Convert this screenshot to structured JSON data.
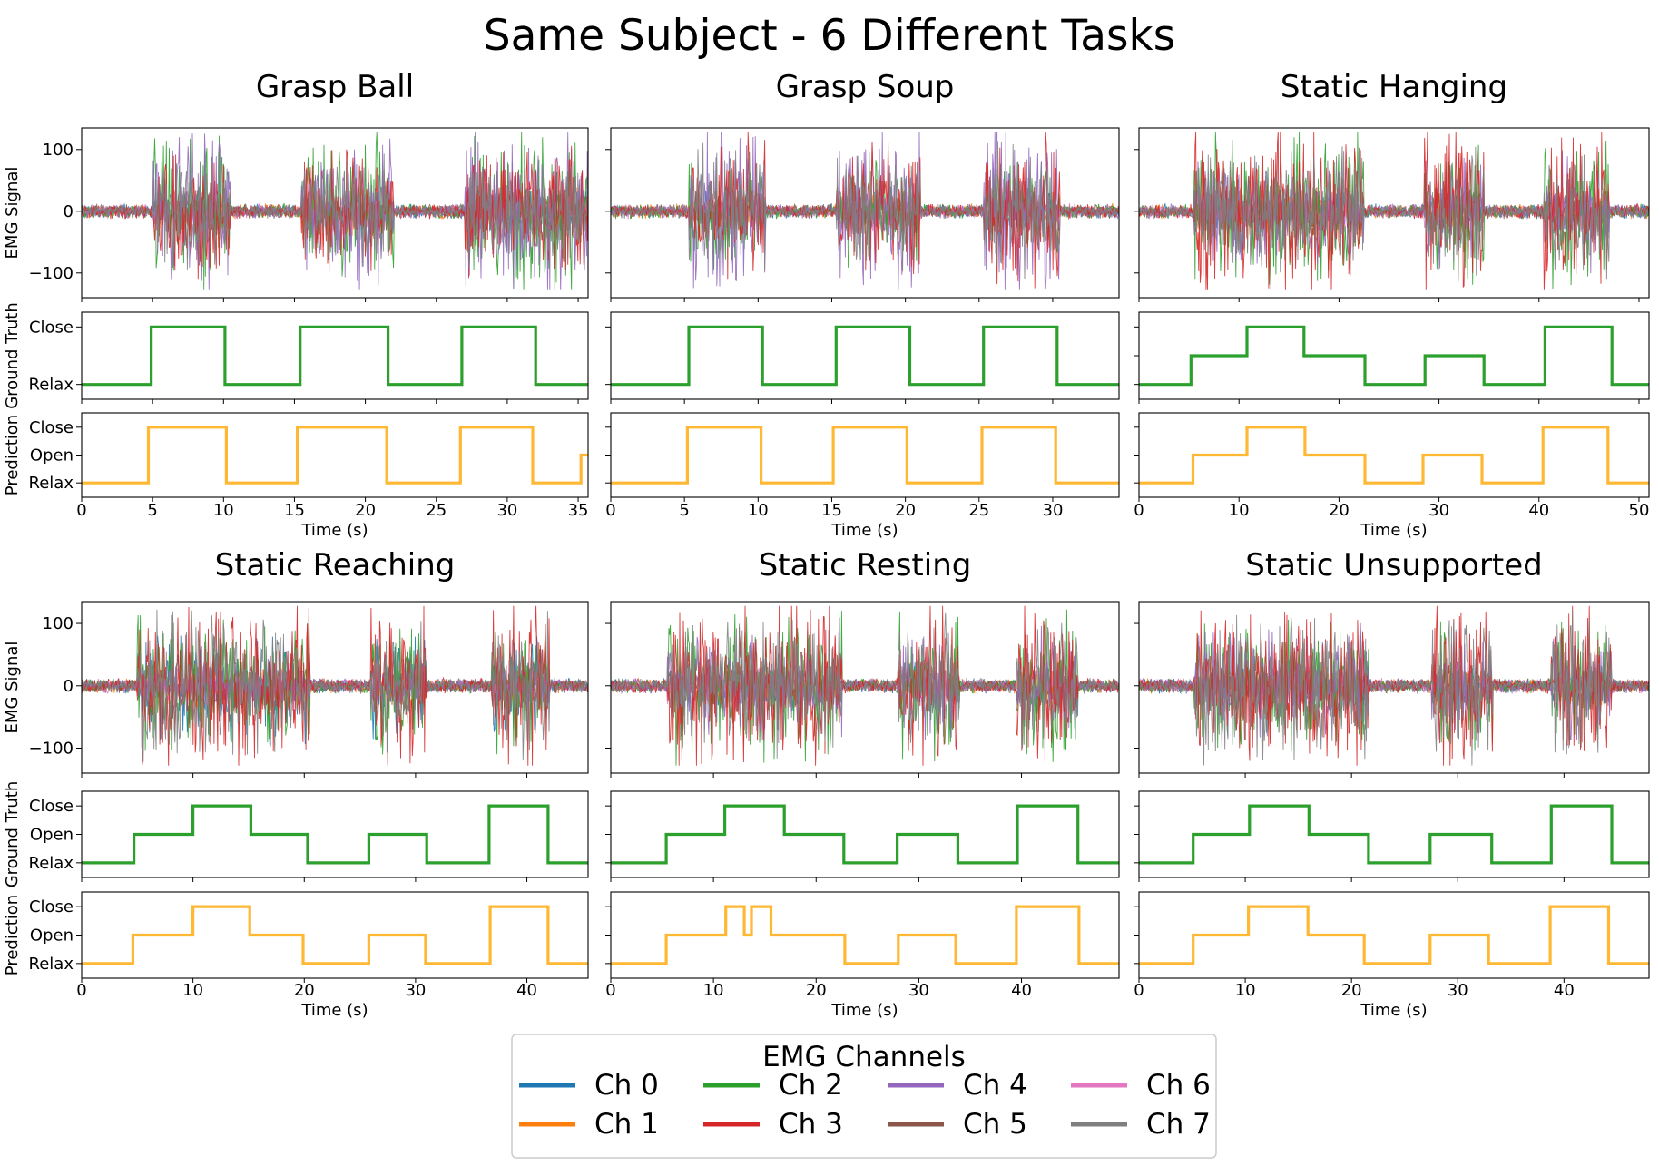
{
  "title": "Same Subject - 6 Different Tasks",
  "axis_labels": {
    "emg": "EMG Signal",
    "ground_truth": "Ground Truth",
    "prediction": "Prediction",
    "time": "Time (s)"
  },
  "legend": {
    "title": "EMG Channels",
    "items": [
      {
        "label": "Ch 0",
        "color": "#1f77b4"
      },
      {
        "label": "Ch 1",
        "color": "#ff7f0e"
      },
      {
        "label": "Ch 2",
        "color": "#2ca02c"
      },
      {
        "label": "Ch 3",
        "color": "#d62728"
      },
      {
        "label": "Ch 4",
        "color": "#9467bd"
      },
      {
        "label": "Ch 5",
        "color": "#8c564b"
      },
      {
        "label": "Ch 6",
        "color": "#e377c2"
      },
      {
        "label": "Ch 7",
        "color": "#7f7f7f"
      }
    ]
  },
  "colors": {
    "ground_truth": "#2ca02c",
    "prediction": "#ffb833"
  },
  "chart_data": [
    {
      "type": "line",
      "title": "Grasp Ball",
      "xlim": [
        0,
        35.7
      ],
      "xticks": [
        0,
        5,
        10,
        15,
        20,
        25,
        30,
        35
      ],
      "emg_ylim": [
        -140,
        135
      ],
      "emg_yticks": [
        -100,
        0,
        100
      ],
      "active_windows": [
        [
          5,
          10.5
        ],
        [
          15.5,
          22
        ],
        [
          27,
          35.7
        ]
      ],
      "emg_channels": [
        "Ch 0",
        "Ch 1",
        "Ch 2",
        "Ch 3",
        "Ch 4",
        "Ch 5",
        "Ch 6",
        "Ch 7"
      ],
      "state_levels_gt": [
        "Relax",
        "Close"
      ],
      "state_levels_pred": [
        "Relax",
        "Open",
        "Close"
      ],
      "ground_truth": {
        "x": [
          0,
          4.9,
          4.9,
          10.1,
          10.1,
          15.4,
          15.4,
          21.6,
          21.6,
          26.8,
          26.8,
          32,
          32,
          35.7
        ],
        "y": [
          "Relax",
          "Relax",
          "Close",
          "Close",
          "Relax",
          "Relax",
          "Close",
          "Close",
          "Relax",
          "Relax",
          "Close",
          "Close",
          "Relax",
          "Relax"
        ]
      },
      "prediction": {
        "x": [
          0,
          4.7,
          4.7,
          10.2,
          10.2,
          15.2,
          15.2,
          21.5,
          21.5,
          26.7,
          26.7,
          31.8,
          31.8,
          35.2,
          35.2,
          35.7
        ],
        "y": [
          "Relax",
          "Relax",
          "Close",
          "Close",
          "Relax",
          "Relax",
          "Close",
          "Close",
          "Relax",
          "Relax",
          "Close",
          "Close",
          "Relax",
          "Relax",
          "Open",
          "Open"
        ]
      }
    },
    {
      "type": "line",
      "title": "Grasp Soup",
      "xlim": [
        0,
        34.5
      ],
      "xticks": [
        0,
        5,
        10,
        15,
        20,
        25,
        30
      ],
      "emg_ylim": [
        -140,
        135
      ],
      "emg_yticks": [
        -100,
        0,
        100
      ],
      "active_windows": [
        [
          5.3,
          10.5
        ],
        [
          15.3,
          21
        ],
        [
          25.3,
          30.5
        ]
      ],
      "emg_channels": [
        "Ch 0",
        "Ch 1",
        "Ch 2",
        "Ch 3",
        "Ch 4",
        "Ch 5",
        "Ch 6",
        "Ch 7"
      ],
      "state_levels_gt": [
        "Relax",
        "Close"
      ],
      "state_levels_pred": [
        "Relax",
        "Open",
        "Close"
      ],
      "ground_truth": {
        "x": [
          0,
          5.3,
          5.3,
          10.3,
          10.3,
          15.3,
          15.3,
          20.3,
          20.3,
          25.3,
          25.3,
          30.3,
          30.3,
          34.5
        ],
        "y": [
          "Relax",
          "Relax",
          "Close",
          "Close",
          "Relax",
          "Relax",
          "Close",
          "Close",
          "Relax",
          "Relax",
          "Close",
          "Close",
          "Relax",
          "Relax"
        ]
      },
      "prediction": {
        "x": [
          0,
          5.2,
          5.2,
          10.2,
          10.2,
          15.1,
          15.1,
          20.1,
          20.1,
          25.2,
          25.2,
          30.2,
          30.2,
          34.5
        ],
        "y": [
          "Relax",
          "Relax",
          "Close",
          "Close",
          "Relax",
          "Relax",
          "Close",
          "Close",
          "Relax",
          "Relax",
          "Close",
          "Close",
          "Relax",
          "Relax"
        ]
      }
    },
    {
      "type": "line",
      "title": "Static Hanging",
      "xlim": [
        0,
        51
      ],
      "xticks": [
        0,
        10,
        20,
        30,
        40,
        50
      ],
      "emg_ylim": [
        -140,
        135
      ],
      "emg_yticks": [
        -100,
        0,
        100
      ],
      "active_windows": [
        [
          5.5,
          11
        ],
        [
          11,
          16.5
        ],
        [
          16.5,
          22.5
        ],
        [
          28.5,
          34.5
        ],
        [
          40.5,
          47
        ]
      ],
      "emg_channels": [
        "Ch 0",
        "Ch 1",
        "Ch 2",
        "Ch 3",
        "Ch 4",
        "Ch 5",
        "Ch 6",
        "Ch 7"
      ],
      "state_levels_gt": [
        "Relax",
        "Open",
        "Close"
      ],
      "state_levels_pred": [
        "Relax",
        "Open",
        "Close"
      ],
      "ground_truth": {
        "x": [
          0,
          5.2,
          5.2,
          10.8,
          10.8,
          16.5,
          16.5,
          22.6,
          22.6,
          28.6,
          28.6,
          34.5,
          34.5,
          40.6,
          40.6,
          47.3,
          47.3,
          51
        ],
        "y": [
          "Relax",
          "Relax",
          "Open",
          "Open",
          "Close",
          "Close",
          "Open",
          "Open",
          "Relax",
          "Relax",
          "Open",
          "Open",
          "Relax",
          "Relax",
          "Close",
          "Close",
          "Relax",
          "Relax"
        ]
      },
      "prediction": {
        "x": [
          0,
          5.4,
          5.4,
          10.8,
          10.8,
          16.6,
          16.6,
          22.6,
          22.6,
          28.4,
          28.4,
          34.3,
          34.3,
          40.4,
          40.4,
          46.9,
          46.9,
          51
        ],
        "y": [
          "Relax",
          "Relax",
          "Open",
          "Open",
          "Close",
          "Close",
          "Open",
          "Open",
          "Relax",
          "Relax",
          "Open",
          "Open",
          "Relax",
          "Relax",
          "Close",
          "Close",
          "Relax",
          "Relax"
        ]
      }
    },
    {
      "type": "line",
      "title": "Static Reaching",
      "xlim": [
        0,
        45.5
      ],
      "xticks": [
        0,
        10,
        20,
        30,
        40
      ],
      "emg_ylim": [
        -140,
        135
      ],
      "emg_yticks": [
        -100,
        0,
        100
      ],
      "active_windows": [
        [
          5,
          10.5
        ],
        [
          10.5,
          15.5
        ],
        [
          15.5,
          20.5
        ],
        [
          26,
          31
        ],
        [
          36.8,
          42
        ]
      ],
      "emg_channels": [
        "Ch 0",
        "Ch 1",
        "Ch 2",
        "Ch 3",
        "Ch 4",
        "Ch 5",
        "Ch 6",
        "Ch 7"
      ],
      "state_levels_gt": [
        "Relax",
        "Open",
        "Close"
      ],
      "state_levels_pred": [
        "Relax",
        "Open",
        "Close"
      ],
      "ground_truth": {
        "x": [
          0,
          4.7,
          4.7,
          10,
          10,
          15.2,
          15.2,
          20.3,
          20.3,
          25.8,
          25.8,
          31,
          31,
          36.6,
          36.6,
          41.9,
          41.9,
          45.5
        ],
        "y": [
          "Relax",
          "Relax",
          "Open",
          "Open",
          "Close",
          "Close",
          "Open",
          "Open",
          "Relax",
          "Relax",
          "Open",
          "Open",
          "Relax",
          "Relax",
          "Close",
          "Close",
          "Relax",
          "Relax"
        ]
      },
      "prediction": {
        "x": [
          0,
          4.6,
          4.6,
          10,
          10,
          15.1,
          15.1,
          19.9,
          19.9,
          25.8,
          25.8,
          30.9,
          30.9,
          36.7,
          36.7,
          41.9,
          41.9,
          45.5
        ],
        "y": [
          "Relax",
          "Relax",
          "Open",
          "Open",
          "Close",
          "Close",
          "Open",
          "Open",
          "Relax",
          "Relax",
          "Open",
          "Open",
          "Relax",
          "Relax",
          "Close",
          "Close",
          "Relax",
          "Relax"
        ]
      }
    },
    {
      "type": "line",
      "title": "Static Resting",
      "xlim": [
        0,
        49.5
      ],
      "xticks": [
        0,
        10,
        20,
        30,
        40
      ],
      "emg_ylim": [
        -140,
        135
      ],
      "emg_yticks": [
        -100,
        0,
        100
      ],
      "active_windows": [
        [
          5.5,
          11.5
        ],
        [
          11.5,
          17
        ],
        [
          17,
          22.5
        ],
        [
          28,
          34
        ],
        [
          39.5,
          45.5
        ]
      ],
      "emg_channels": [
        "Ch 0",
        "Ch 1",
        "Ch 2",
        "Ch 3",
        "Ch 4",
        "Ch 5",
        "Ch 6",
        "Ch 7"
      ],
      "state_levels_gt": [
        "Relax",
        "Open",
        "Close"
      ],
      "state_levels_pred": [
        "Relax",
        "Open",
        "Close"
      ],
      "ground_truth": {
        "x": [
          0,
          5.4,
          5.4,
          11.1,
          11.1,
          16.9,
          16.9,
          22.7,
          22.7,
          27.9,
          27.9,
          33.8,
          33.8,
          39.6,
          39.6,
          45.5,
          45.5,
          49.5
        ],
        "y": [
          "Relax",
          "Relax",
          "Open",
          "Open",
          "Close",
          "Close",
          "Open",
          "Open",
          "Relax",
          "Relax",
          "Open",
          "Open",
          "Relax",
          "Relax",
          "Close",
          "Close",
          "Relax",
          "Relax"
        ]
      },
      "prediction": {
        "x": [
          0,
          5.4,
          5.4,
          11.2,
          11.2,
          13,
          13,
          13.7,
          13.7,
          15.6,
          15.6,
          22.8,
          22.8,
          28,
          28,
          33.6,
          33.6,
          39.5,
          39.5,
          45.6,
          45.6,
          49.5
        ],
        "y": [
          "Relax",
          "Relax",
          "Open",
          "Open",
          "Close",
          "Close",
          "Open",
          "Open",
          "Close",
          "Close",
          "Open",
          "Open",
          "Relax",
          "Relax",
          "Open",
          "Open",
          "Relax",
          "Relax",
          "Close",
          "Close",
          "Relax",
          "Relax"
        ]
      }
    },
    {
      "type": "line",
      "title": "Static Unsupported",
      "xlim": [
        0,
        48
      ],
      "xticks": [
        0,
        10,
        20,
        30,
        40
      ],
      "emg_ylim": [
        -140,
        135
      ],
      "emg_yticks": [
        -100,
        0,
        100
      ],
      "active_windows": [
        [
          5.2,
          10.5
        ],
        [
          10.5,
          16
        ],
        [
          16,
          21.6
        ],
        [
          27.5,
          33.3
        ],
        [
          38.8,
          44.5
        ]
      ],
      "emg_channels": [
        "Ch 0",
        "Ch 1",
        "Ch 2",
        "Ch 3",
        "Ch 4",
        "Ch 5",
        "Ch 6",
        "Ch 7"
      ],
      "state_levels_gt": [
        "Relax",
        "Open",
        "Close"
      ],
      "state_levels_pred": [
        "Relax",
        "Open",
        "Close"
      ],
      "ground_truth": {
        "x": [
          0,
          5.1,
          5.1,
          10.4,
          10.4,
          16,
          16,
          21.6,
          21.6,
          27.4,
          27.4,
          33.2,
          33.2,
          38.8,
          38.8,
          44.5,
          44.5,
          48
        ],
        "y": [
          "Relax",
          "Relax",
          "Open",
          "Open",
          "Close",
          "Close",
          "Open",
          "Open",
          "Relax",
          "Relax",
          "Open",
          "Open",
          "Relax",
          "Relax",
          "Close",
          "Close",
          "Relax",
          "Relax"
        ]
      },
      "prediction": {
        "x": [
          0,
          5.1,
          5.1,
          10.3,
          10.3,
          15.9,
          15.9,
          21.2,
          21.2,
          27.4,
          27.4,
          32.9,
          32.9,
          38.7,
          38.7,
          44.2,
          44.2,
          48
        ],
        "y": [
          "Relax",
          "Relax",
          "Open",
          "Open",
          "Close",
          "Close",
          "Open",
          "Open",
          "Relax",
          "Relax",
          "Open",
          "Open",
          "Relax",
          "Relax",
          "Close",
          "Close",
          "Relax",
          "Relax"
        ]
      }
    }
  ]
}
